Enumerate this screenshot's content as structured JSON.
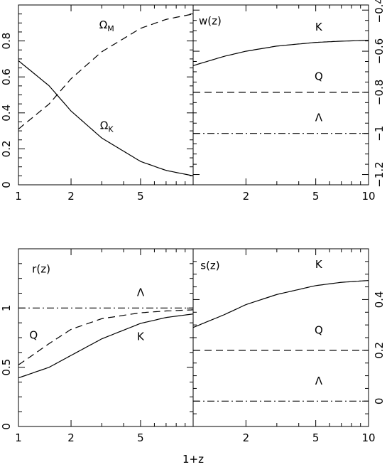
{
  "chart_data": [
    {
      "id": "tl",
      "type": "line",
      "xscale": "log",
      "xlim": [
        1,
        10
      ],
      "ylim": [
        0,
        1
      ],
      "ytick_side": "left",
      "x_tick_labels": [
        {
          "v": 1,
          "t": "1"
        },
        {
          "v": 2,
          "t": "2"
        },
        {
          "v": 5,
          "t": "5"
        }
      ],
      "y_tick_labels": [
        {
          "v": 0,
          "t": "0"
        },
        {
          "v": 0.2,
          "t": "0.2"
        },
        {
          "v": 0.4,
          "t": "0.4"
        },
        {
          "v": 0.6,
          "t": "0.6"
        },
        {
          "v": 0.8,
          "t": "0.8"
        }
      ],
      "series": [
        {
          "style": "dashed",
          "x": [
            1,
            1.5,
            2,
            3,
            5,
            7,
            10
          ],
          "y": [
            0.31,
            0.45,
            0.59,
            0.74,
            0.87,
            0.92,
            0.95
          ]
        },
        {
          "style": "solid",
          "x": [
            1,
            1.5,
            2,
            3,
            5,
            7,
            10
          ],
          "y": [
            0.69,
            0.55,
            0.41,
            0.26,
            0.13,
            0.08,
            0.05
          ]
        }
      ],
      "annotations": [
        {
          "label": "Ω",
          "sub": "M",
          "x": 3.2,
          "y": 0.87
        },
        {
          "label": "Ω",
          "sub": "K",
          "x": 3.2,
          "y": 0.31
        }
      ]
    },
    {
      "id": "tr",
      "type": "line",
      "xscale": "log",
      "xlim": [
        1,
        10
      ],
      "ylim": [
        -1.25,
        -0.375
      ],
      "ytick_side": "right",
      "x_tick_labels": [
        {
          "v": 2,
          "t": "2"
        },
        {
          "v": 5,
          "t": "5"
        },
        {
          "v": 10,
          "t": "10"
        }
      ],
      "y_tick_labels": [
        {
          "v": -1.2,
          "t": "−1.2"
        },
        {
          "v": -1,
          "t": "−1"
        },
        {
          "v": -0.8,
          "t": "−0.8"
        },
        {
          "v": -0.6,
          "t": "−0.6"
        },
        {
          "v": -0.4,
          "t": "−0.4"
        }
      ],
      "series": [
        {
          "style": "solid",
          "x": [
            1,
            1.5,
            2,
            3,
            5,
            7,
            10
          ],
          "y": [
            -0.67,
            -0.625,
            -0.6,
            -0.575,
            -0.557,
            -0.551,
            -0.547
          ]
        },
        {
          "style": "dashed",
          "x": [
            1,
            10
          ],
          "y": [
            -0.8,
            -0.8
          ]
        },
        {
          "style": "dashdot",
          "x": [
            1,
            10
          ],
          "y": [
            -1,
            -1
          ]
        }
      ],
      "annotations": [
        {
          "label": "w(z)",
          "x": 1.25,
          "y": -0.47
        },
        {
          "label": "K",
          "x": 5.2,
          "y": -0.5
        },
        {
          "label": "Q",
          "x": 5.2,
          "y": -0.74
        },
        {
          "label": "Λ",
          "x": 5.2,
          "y": -0.94
        }
      ]
    },
    {
      "id": "bl",
      "type": "line",
      "xscale": "log",
      "xlim": [
        1,
        10
      ],
      "ylim": [
        0,
        1.5
      ],
      "ytick_side": "left",
      "x_tick_labels": [
        {
          "v": 1,
          "t": "1"
        },
        {
          "v": 2,
          "t": "2"
        },
        {
          "v": 5,
          "t": "5"
        }
      ],
      "y_tick_labels": [
        {
          "v": 0,
          "t": "0"
        },
        {
          "v": 0.5,
          "t": "0.5"
        },
        {
          "v": 1,
          "t": "1"
        }
      ],
      "xlabel": "1+z",
      "series": [
        {
          "style": "dashdot",
          "x": [
            1,
            10
          ],
          "y": [
            1,
            1
          ]
        },
        {
          "style": "dashed",
          "x": [
            1,
            1.5,
            2,
            3,
            5,
            7,
            10
          ],
          "y": [
            0.52,
            0.7,
            0.82,
            0.91,
            0.96,
            0.975,
            0.985
          ]
        },
        {
          "style": "solid",
          "x": [
            1,
            1.5,
            2,
            3,
            5,
            7,
            10
          ],
          "y": [
            0.41,
            0.5,
            0.6,
            0.74,
            0.87,
            0.92,
            0.95
          ]
        }
      ],
      "annotations": [
        {
          "label": "r(z)",
          "x": 1.35,
          "y": 1.3
        },
        {
          "label": "Λ",
          "x": 5.0,
          "y": 1.1
        },
        {
          "label": "Q",
          "x": 1.22,
          "y": 0.74
        },
        {
          "label": "K",
          "x": 5.0,
          "y": 0.73
        }
      ]
    },
    {
      "id": "br",
      "type": "line",
      "xscale": "log",
      "xlim": [
        1,
        10
      ],
      "ylim": [
        -0.1,
        0.6
      ],
      "ytick_side": "right",
      "x_tick_labels": [
        {
          "v": 2,
          "t": "2"
        },
        {
          "v": 5,
          "t": "5"
        },
        {
          "v": 10,
          "t": "10"
        }
      ],
      "y_tick_labels": [
        {
          "v": 0,
          "t": "0"
        },
        {
          "v": 0.2,
          "t": "0.2"
        },
        {
          "v": 0.4,
          "t": "0.4"
        }
      ],
      "series": [
        {
          "style": "solid",
          "x": [
            1,
            1.5,
            2,
            3,
            5,
            7,
            10
          ],
          "y": [
            0.29,
            0.34,
            0.38,
            0.42,
            0.455,
            0.468,
            0.475
          ]
        },
        {
          "style": "dashed",
          "x": [
            1,
            10
          ],
          "y": [
            0.2,
            0.2
          ]
        },
        {
          "style": "dashdot",
          "x": [
            1,
            10
          ],
          "y": [
            0,
            0
          ]
        }
      ],
      "annotations": [
        {
          "label": "s(z)",
          "x": 1.25,
          "y": 0.52
        },
        {
          "label": "K",
          "x": 5.2,
          "y": 0.525
        },
        {
          "label": "Q",
          "x": 5.2,
          "y": 0.265
        },
        {
          "label": "Λ",
          "x": 5.2,
          "y": 0.065
        }
      ]
    }
  ]
}
